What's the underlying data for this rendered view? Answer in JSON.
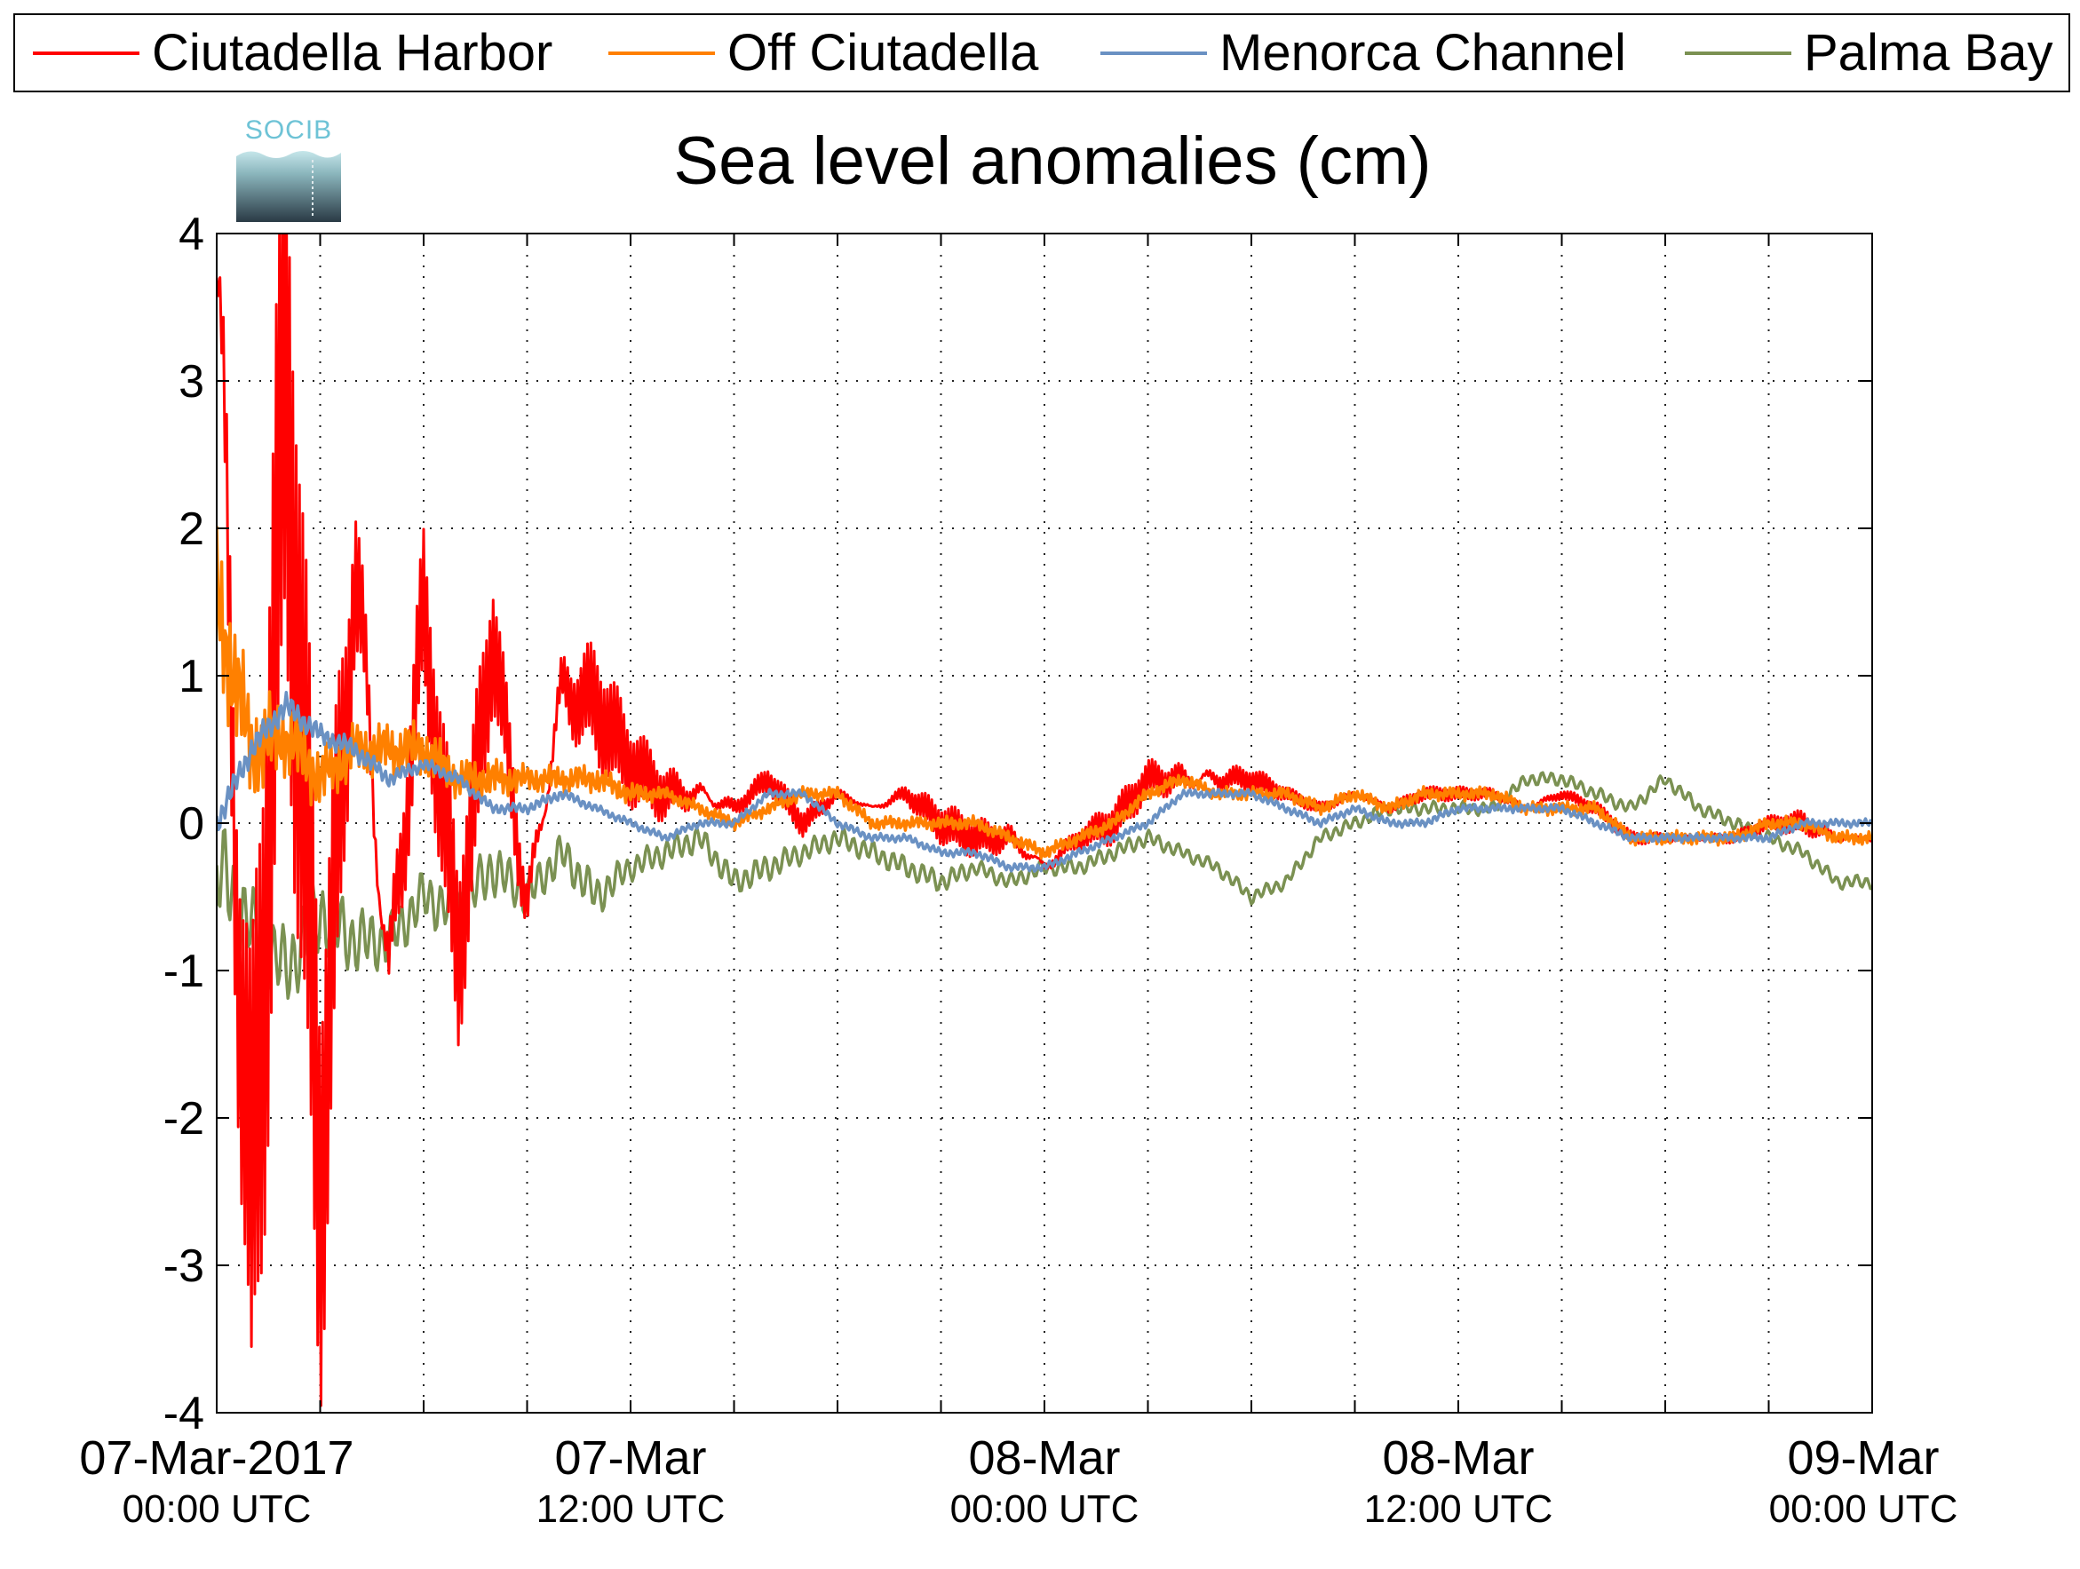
{
  "chart_data": {
    "type": "line",
    "title": "Sea level anomalies (cm)",
    "xlabel": "",
    "ylabel": "",
    "ylim": [
      -4,
      4
    ],
    "xlim": [
      "2017-03-07 00:00",
      "2017-03-09 00:00"
    ],
    "grid": true,
    "legend_position": "top",
    "yticks": [
      "4",
      "3",
      "2",
      "1",
      "0",
      "-1",
      "-2",
      "-3",
      "-4"
    ],
    "xticks": [
      {
        "date": "07-Mar-2017",
        "time": "00:00 UTC"
      },
      {
        "date": "07-Mar",
        "time": "12:00 UTC"
      },
      {
        "date": "08-Mar",
        "time": "00:00 UTC"
      },
      {
        "date": "08-Mar",
        "time": "12:00 UTC"
      },
      {
        "date": "09-Mar",
        "time": "00:00 UTC"
      }
    ],
    "series": [
      {
        "name": "Ciutadella Harbor",
        "color": "#ff0000",
        "x": [
          "2017-03-07 00:00",
          "2017-03-07 01:00",
          "2017-03-07 02:00",
          "2017-03-07 03:00",
          "2017-03-07 04:00",
          "2017-03-07 05:00",
          "2017-03-07 06:00",
          "2017-03-07 07:00",
          "2017-03-07 08:00",
          "2017-03-07 09:00",
          "2017-03-07 10:00",
          "2017-03-07 11:00",
          "2017-03-07 12:00",
          "2017-03-07 13:00",
          "2017-03-07 14:00",
          "2017-03-07 15:00",
          "2017-03-07 16:00",
          "2017-03-07 17:00",
          "2017-03-07 18:00",
          "2017-03-07 19:00",
          "2017-03-07 20:00",
          "2017-03-07 21:00",
          "2017-03-07 22:00",
          "2017-03-07 23:00",
          "2017-03-08 00:00",
          "2017-03-08 01:00",
          "2017-03-08 02:00",
          "2017-03-08 03:00",
          "2017-03-08 04:00",
          "2017-03-08 05:00",
          "2017-03-08 06:00",
          "2017-03-08 07:00",
          "2017-03-08 08:00",
          "2017-03-08 09:00",
          "2017-03-08 10:00",
          "2017-03-08 11:00",
          "2017-03-08 12:00",
          "2017-03-08 13:00",
          "2017-03-08 14:00",
          "2017-03-08 15:00",
          "2017-03-08 16:00",
          "2017-03-08 17:00",
          "2017-03-08 18:00",
          "2017-03-08 19:00",
          "2017-03-08 20:00",
          "2017-03-08 21:00",
          "2017-03-08 22:00",
          "2017-03-08 23:00",
          "2017-03-09 00:00"
        ],
        "y": [
          3.7,
          -3.0,
          3.1,
          -2.4,
          1.8,
          -1.1,
          1.4,
          -0.9,
          1.3,
          -0.6,
          0.9,
          0.8,
          0.4,
          0.2,
          0.2,
          0.1,
          0.3,
          0.0,
          0.2,
          0.1,
          0.2,
          0.0,
          -0.1,
          -0.1,
          -0.3,
          -0.1,
          0.0,
          0.3,
          0.3,
          0.3,
          0.3,
          0.2,
          0.1,
          0.2,
          0.1,
          0.2,
          0.2,
          0.2,
          0.1,
          0.2,
          0.1,
          -0.1,
          -0.1,
          -0.1,
          -0.1,
          0.0,
          0.0,
          -0.1,
          -0.1
        ],
        "amp": [
          3.0,
          2.8,
          2.3,
          1.8,
          1.3,
          1.0,
          0.8,
          0.7,
          0.6,
          0.5,
          0.5,
          0.5,
          0.3,
          0.25,
          0.2,
          0.1,
          0.1,
          0.1,
          0.05,
          0.05,
          0.1,
          0.15,
          0.15,
          0.15,
          0.1,
          0.1,
          0.15,
          0.15,
          0.2,
          0.15,
          0.1,
          0.05,
          0.05,
          0.05,
          0.05,
          0.05,
          0.05,
          0.05,
          0.05,
          0.05,
          0.05,
          0.05,
          0.05,
          0.05,
          0.05,
          0.05,
          0.1,
          0.05,
          0.05
        ]
      },
      {
        "name": "Off Ciutadella",
        "color": "#ff8000",
        "x": [
          "2017-03-07 00:00",
          "2017-03-07 01:00",
          "2017-03-07 02:00",
          "2017-03-07 03:00",
          "2017-03-07 04:00",
          "2017-03-07 05:00",
          "2017-03-07 06:00",
          "2017-03-07 07:00",
          "2017-03-07 08:00",
          "2017-03-07 09:00",
          "2017-03-07 10:00",
          "2017-03-07 11:00",
          "2017-03-07 12:00",
          "2017-03-07 13:00",
          "2017-03-07 14:00",
          "2017-03-07 15:00",
          "2017-03-07 16:00",
          "2017-03-07 17:00",
          "2017-03-07 18:00",
          "2017-03-07 19:00",
          "2017-03-07 20:00",
          "2017-03-07 21:00",
          "2017-03-07 22:00",
          "2017-03-07 23:00",
          "2017-03-08 00:00",
          "2017-03-08 01:00",
          "2017-03-08 02:00",
          "2017-03-08 03:00",
          "2017-03-08 04:00",
          "2017-03-08 05:00",
          "2017-03-08 06:00",
          "2017-03-08 07:00",
          "2017-03-08 08:00",
          "2017-03-08 09:00",
          "2017-03-08 10:00",
          "2017-03-08 11:00",
          "2017-03-08 12:00",
          "2017-03-08 13:00",
          "2017-03-08 14:00",
          "2017-03-08 15:00",
          "2017-03-08 16:00",
          "2017-03-08 17:00",
          "2017-03-08 18:00",
          "2017-03-08 19:00",
          "2017-03-08 20:00",
          "2017-03-08 21:00",
          "2017-03-08 22:00",
          "2017-03-08 23:00",
          "2017-03-09 00:00"
        ],
        "y": [
          1.5,
          0.5,
          0.6,
          0.3,
          0.5,
          0.5,
          0.5,
          0.3,
          0.3,
          0.3,
          0.3,
          0.3,
          0.2,
          0.2,
          0.1,
          0.0,
          0.1,
          0.2,
          0.2,
          0.0,
          0.0,
          0.0,
          0.0,
          -0.1,
          -0.2,
          -0.1,
          0.0,
          0.2,
          0.3,
          0.2,
          0.2,
          0.2,
          0.1,
          0.2,
          0.1,
          0.2,
          0.2,
          0.2,
          0.1,
          0.1,
          0.1,
          -0.1,
          -0.1,
          -0.1,
          -0.1,
          0.0,
          0.0,
          -0.1,
          -0.1
        ],
        "amp": [
          0.6,
          0.4,
          0.3,
          0.25,
          0.2,
          0.2,
          0.2,
          0.15,
          0.15,
          0.1,
          0.1,
          0.1,
          0.08,
          0.05,
          0.05,
          0.05,
          0.05,
          0.05,
          0.05,
          0.05,
          0.05,
          0.05,
          0.05,
          0.05,
          0.05,
          0.05,
          0.05,
          0.05,
          0.05,
          0.05,
          0.05,
          0.05,
          0.05,
          0.05,
          0.05,
          0.05,
          0.05,
          0.05,
          0.05,
          0.05,
          0.05,
          0.05,
          0.05,
          0.05,
          0.05,
          0.05,
          0.05,
          0.05,
          0.05
        ]
      },
      {
        "name": "Menorca Channel",
        "color": "#6a91c3",
        "x": [
          "2017-03-07 00:00",
          "2017-03-07 01:00",
          "2017-03-07 02:00",
          "2017-03-07 03:00",
          "2017-03-07 04:00",
          "2017-03-07 05:00",
          "2017-03-07 06:00",
          "2017-03-07 07:00",
          "2017-03-07 08:00",
          "2017-03-07 09:00",
          "2017-03-07 10:00",
          "2017-03-07 11:00",
          "2017-03-07 12:00",
          "2017-03-07 13:00",
          "2017-03-07 14:00",
          "2017-03-07 15:00",
          "2017-03-07 16:00",
          "2017-03-07 17:00",
          "2017-03-07 18:00",
          "2017-03-07 19:00",
          "2017-03-07 20:00",
          "2017-03-07 21:00",
          "2017-03-07 22:00",
          "2017-03-07 23:00",
          "2017-03-08 00:00",
          "2017-03-08 01:00",
          "2017-03-08 02:00",
          "2017-03-08 03:00",
          "2017-03-08 04:00",
          "2017-03-08 05:00",
          "2017-03-08 06:00",
          "2017-03-08 07:00",
          "2017-03-08 08:00",
          "2017-03-08 09:00",
          "2017-03-08 10:00",
          "2017-03-08 11:00",
          "2017-03-08 12:00",
          "2017-03-08 13:00",
          "2017-03-08 14:00",
          "2017-03-08 15:00",
          "2017-03-08 16:00",
          "2017-03-08 17:00",
          "2017-03-08 18:00",
          "2017-03-08 19:00",
          "2017-03-08 20:00",
          "2017-03-08 21:00",
          "2017-03-08 22:00",
          "2017-03-08 23:00",
          "2017-03-09 00:00"
        ],
        "y": [
          0.0,
          0.5,
          0.8,
          0.6,
          0.5,
          0.3,
          0.4,
          0.3,
          0.1,
          0.1,
          0.2,
          0.1,
          0.0,
          -0.1,
          0.0,
          0.0,
          0.2,
          0.2,
          0.0,
          -0.1,
          -0.1,
          -0.2,
          -0.2,
          -0.3,
          -0.3,
          -0.2,
          -0.1,
          0.0,
          0.2,
          0.2,
          0.2,
          0.1,
          0.0,
          0.1,
          0.0,
          0.0,
          0.1,
          0.1,
          0.1,
          0.1,
          0.0,
          -0.1,
          -0.1,
          -0.1,
          -0.1,
          -0.1,
          0.0,
          0.0,
          0.0
        ],
        "amp": [
          0.1,
          0.1,
          0.1,
          0.08,
          0.08,
          0.06,
          0.05,
          0.05,
          0.04,
          0.04,
          0.04,
          0.03,
          0.03,
          0.03,
          0.03,
          0.03,
          0.03,
          0.03,
          0.03,
          0.03,
          0.03,
          0.03,
          0.03,
          0.03,
          0.03,
          0.03,
          0.03,
          0.03,
          0.03,
          0.03,
          0.03,
          0.03,
          0.03,
          0.03,
          0.03,
          0.03,
          0.03,
          0.03,
          0.03,
          0.03,
          0.03,
          0.03,
          0.03,
          0.03,
          0.03,
          0.03,
          0.03,
          0.03,
          0.03
        ]
      },
      {
        "name": "Palma Bay",
        "color": "#7b9152",
        "x": [
          "2017-03-07 00:00",
          "2017-03-07 01:00",
          "2017-03-07 02:00",
          "2017-03-07 03:00",
          "2017-03-07 04:00",
          "2017-03-07 05:00",
          "2017-03-07 06:00",
          "2017-03-07 07:00",
          "2017-03-07 08:00",
          "2017-03-07 09:00",
          "2017-03-07 10:00",
          "2017-03-07 11:00",
          "2017-03-07 12:00",
          "2017-03-07 13:00",
          "2017-03-07 14:00",
          "2017-03-07 15:00",
          "2017-03-07 16:00",
          "2017-03-07 17:00",
          "2017-03-07 18:00",
          "2017-03-07 19:00",
          "2017-03-07 20:00",
          "2017-03-07 21:00",
          "2017-03-07 22:00",
          "2017-03-07 23:00",
          "2017-03-08 00:00",
          "2017-03-08 01:00",
          "2017-03-08 02:00",
          "2017-03-08 03:00",
          "2017-03-08 04:00",
          "2017-03-08 05:00",
          "2017-03-08 06:00",
          "2017-03-08 07:00",
          "2017-03-08 08:00",
          "2017-03-08 09:00",
          "2017-03-08 10:00",
          "2017-03-08 11:00",
          "2017-03-08 12:00",
          "2017-03-08 13:00",
          "2017-03-08 14:00",
          "2017-03-08 15:00",
          "2017-03-08 16:00",
          "2017-03-08 17:00",
          "2017-03-08 18:00",
          "2017-03-08 19:00",
          "2017-03-08 20:00",
          "2017-03-08 21:00",
          "2017-03-08 22:00",
          "2017-03-08 23:00",
          "2017-03-09 00:00"
        ],
        "y": [
          -0.3,
          -0.7,
          -1.0,
          -0.6,
          -0.8,
          -0.8,
          -0.5,
          -0.6,
          -0.3,
          -0.5,
          -0.2,
          -0.5,
          -0.3,
          -0.2,
          -0.1,
          -0.4,
          -0.3,
          -0.2,
          -0.1,
          -0.2,
          -0.3,
          -0.4,
          -0.3,
          -0.4,
          -0.3,
          -0.3,
          -0.2,
          -0.1,
          -0.2,
          -0.3,
          -0.5,
          -0.4,
          -0.1,
          0.0,
          0.1,
          0.1,
          0.1,
          0.1,
          0.3,
          0.3,
          0.2,
          0.1,
          0.3,
          0.1,
          0.0,
          -0.1,
          -0.2,
          -0.4,
          -0.4
        ],
        "amp": [
          0.4,
          0.3,
          0.3,
          0.3,
          0.25,
          0.2,
          0.2,
          0.2,
          0.2,
          0.15,
          0.15,
          0.15,
          0.1,
          0.1,
          0.1,
          0.1,
          0.1,
          0.08,
          0.08,
          0.08,
          0.08,
          0.08,
          0.06,
          0.06,
          0.06,
          0.06,
          0.06,
          0.06,
          0.05,
          0.05,
          0.05,
          0.05,
          0.05,
          0.05,
          0.05,
          0.05,
          0.05,
          0.05,
          0.05,
          0.05,
          0.05,
          0.05,
          0.05,
          0.05,
          0.05,
          0.05,
          0.05,
          0.05,
          0.05
        ]
      }
    ]
  },
  "logo": {
    "text": "SOCIB"
  }
}
